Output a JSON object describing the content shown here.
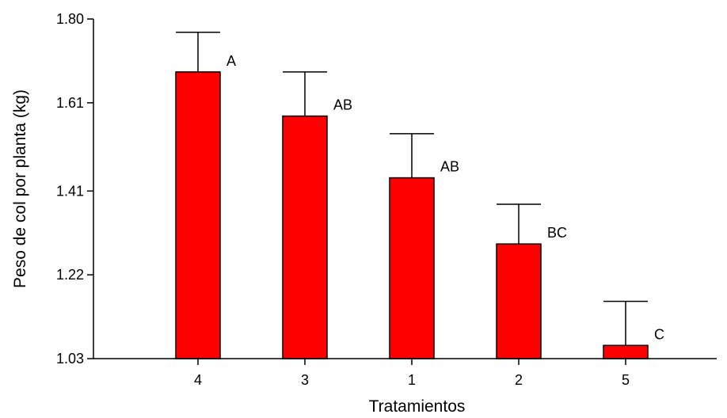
{
  "chart_data": {
    "type": "bar",
    "title": "",
    "xlabel": "Tratamientos",
    "ylabel": "Peso de col por planta (kg)",
    "ylim": [
      1.03,
      1.8
    ],
    "yticks": [
      "1.03",
      "1.22",
      "1.41",
      "1.61",
      "1.80"
    ],
    "categories": [
      "4",
      "3",
      "1",
      "2",
      "5"
    ],
    "values": [
      1.68,
      1.58,
      1.44,
      1.29,
      1.06
    ],
    "error_upper": [
      1.77,
      1.68,
      1.54,
      1.38,
      1.16
    ],
    "significance_labels": [
      "A",
      "AB",
      "AB",
      "BC",
      "C"
    ],
    "bar_color": "#ff0000",
    "grid": false,
    "legend": "none"
  }
}
